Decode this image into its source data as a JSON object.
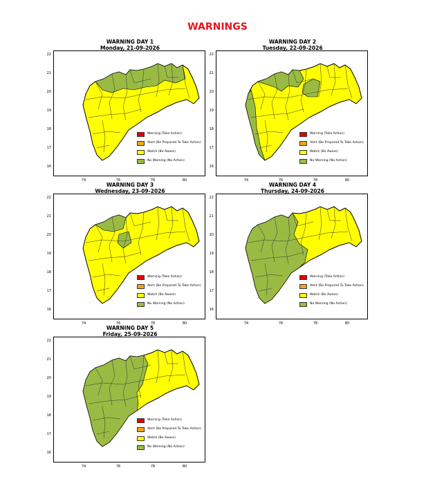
{
  "page": {
    "title": "WARNINGS"
  },
  "legend": [
    {
      "label": "Warning (Take Action)",
      "color": "#e60000"
    },
    {
      "label": "Alert (Be Prepared To Take Action)",
      "color": "#f5a31a"
    },
    {
      "label": "Watch (Be Aware)",
      "color": "#ffff00"
    },
    {
      "label": "No Warning (No Action)",
      "color": "#99bb44"
    }
  ],
  "axis": {
    "y_ticks": [
      "22",
      "21",
      "20",
      "19",
      "18",
      "17",
      "16"
    ],
    "x_ticks": [
      "74",
      "76",
      "78",
      "80"
    ]
  },
  "days": [
    {
      "heading": "WARNING DAY 1",
      "date": "Monday, 21-09-2026",
      "green_zone": "north"
    },
    {
      "heading": "WARNING DAY 2",
      "date": "Tuesday, 22-09-2026",
      "green_zone": "north-coast"
    },
    {
      "heading": "WARNING DAY 3",
      "date": "Wednesday, 23-09-2026",
      "green_zone": "north-small"
    },
    {
      "heading": "WARNING DAY 4",
      "date": "Thursday, 24-09-2026",
      "green_zone": "west-central"
    },
    {
      "heading": "WARNING DAY 5",
      "date": "Friday, 25-09-2026",
      "green_zone": "west-majority"
    }
  ]
}
